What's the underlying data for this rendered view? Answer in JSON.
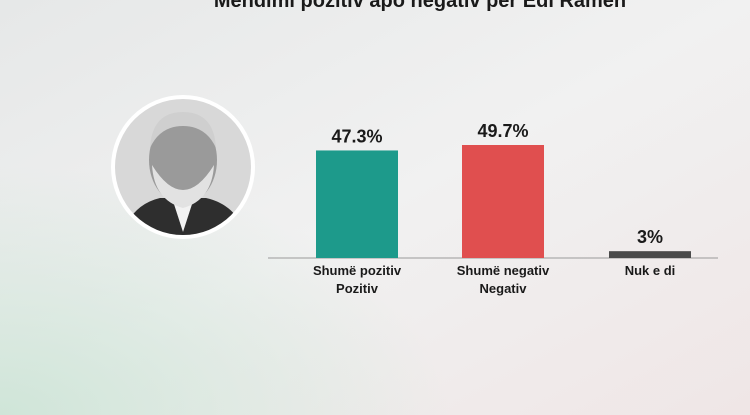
{
  "chart_data": {
    "type": "bar",
    "title": "Mendimi pozitiv apo negativ për Edi Ramën",
    "categories": [
      [
        "Shumë pozitiv",
        "Pozitiv"
      ],
      [
        "Shumë negativ",
        "Negativ"
      ],
      [
        "Nuk e di"
      ]
    ],
    "values": [
      47.3,
      49.7,
      3
    ],
    "value_labels": [
      "47.3%",
      "49.7%",
      "3%"
    ],
    "colors": [
      "#1d9a8b",
      "#e04f4f",
      "#4a4a4a"
    ]
  }
}
